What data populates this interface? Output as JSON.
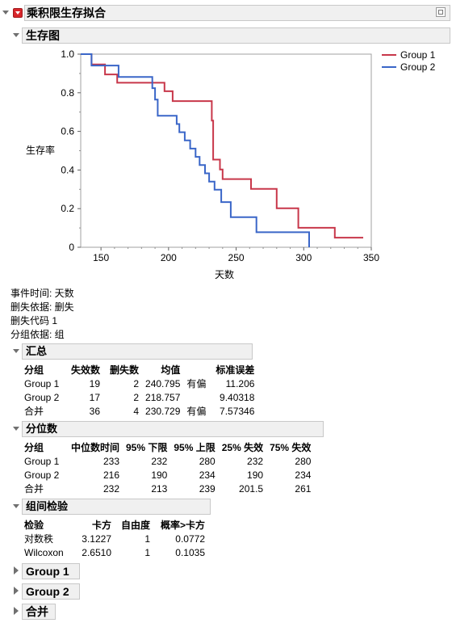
{
  "report": {
    "title": "乘积限生存拟合"
  },
  "plot": {
    "title": "生存图",
    "xlabel": "天数",
    "ylabel": "生存率"
  },
  "chart_data": {
    "type": "line",
    "title": "生存图",
    "xlabel": "天数",
    "ylabel": "生存率",
    "xlim": [
      135,
      350
    ],
    "ylim": [
      0,
      1.0
    ],
    "xticks": [
      150,
      200,
      250,
      300,
      350
    ],
    "yticks": [
      0,
      0.2,
      0.4,
      0.6,
      0.8,
      1.0
    ],
    "ytick_labels": [
      "0",
      "0.2",
      "0.4",
      "0.6",
      "0.8",
      "1.0"
    ],
    "legend_position": "right",
    "series": [
      {
        "name": "Group 1",
        "color": "#c8374a",
        "steps": [
          [
            135,
            1.0
          ],
          [
            143,
            1.0
          ],
          [
            143,
            0.947
          ],
          [
            153,
            0.947
          ],
          [
            153,
            0.895
          ],
          [
            162,
            0.895
          ],
          [
            162,
            0.852
          ],
          [
            197,
            0.852
          ],
          [
            197,
            0.808
          ],
          [
            203,
            0.808
          ],
          [
            203,
            0.757
          ],
          [
            232,
            0.757
          ],
          [
            232,
            0.656
          ],
          [
            233,
            0.656
          ],
          [
            233,
            0.454
          ],
          [
            238,
            0.454
          ],
          [
            238,
            0.403
          ],
          [
            240,
            0.403
          ],
          [
            240,
            0.353
          ],
          [
            261,
            0.353
          ],
          [
            261,
            0.302
          ],
          [
            280,
            0.302
          ],
          [
            280,
            0.202
          ],
          [
            296,
            0.202
          ],
          [
            296,
            0.101
          ],
          [
            323,
            0.101
          ],
          [
            323,
            0.05
          ],
          [
            344,
            0.05
          ]
        ]
      },
      {
        "name": "Group 2",
        "color": "#3a66c8",
        "steps": [
          [
            135,
            1.0
          ],
          [
            143,
            1.0
          ],
          [
            143,
            0.941
          ],
          [
            163,
            0.941
          ],
          [
            163,
            0.882
          ],
          [
            188,
            0.882
          ],
          [
            188,
            0.824
          ],
          [
            190,
            0.824
          ],
          [
            190,
            0.765
          ],
          [
            192,
            0.765
          ],
          [
            192,
            0.681
          ],
          [
            206,
            0.681
          ],
          [
            206,
            0.638
          ],
          [
            208,
            0.638
          ],
          [
            208,
            0.596
          ],
          [
            212,
            0.596
          ],
          [
            212,
            0.553
          ],
          [
            216,
            0.553
          ],
          [
            216,
            0.511
          ],
          [
            220,
            0.511
          ],
          [
            220,
            0.468
          ],
          [
            223,
            0.468
          ],
          [
            223,
            0.426
          ],
          [
            227,
            0.426
          ],
          [
            227,
            0.383
          ],
          [
            230,
            0.383
          ],
          [
            230,
            0.34
          ],
          [
            234,
            0.34
          ],
          [
            234,
            0.298
          ],
          [
            239,
            0.298
          ],
          [
            239,
            0.234
          ],
          [
            246,
            0.234
          ],
          [
            246,
            0.156
          ],
          [
            265,
            0.156
          ],
          [
            265,
            0.078
          ],
          [
            304,
            0.078
          ],
          [
            304,
            0.0
          ]
        ]
      }
    ]
  },
  "info": [
    "事件时间: 天数",
    "删失依据: 删失",
    "删失代码 1",
    "分组依据: 组"
  ],
  "summary": {
    "title": "汇总",
    "headers": [
      "分组",
      "失效数",
      "删失数",
      "均值",
      "",
      "标准误差"
    ],
    "rows": [
      [
        "Group 1",
        "19",
        "2",
        "240.795",
        "有偏",
        "11.206"
      ],
      [
        "Group 2",
        "17",
        "2",
        "218.757",
        "",
        "9.40318"
      ],
      [
        "合并",
        "36",
        "4",
        "230.729",
        "有偏",
        "7.57346"
      ]
    ]
  },
  "quantiles": {
    "title": "分位数",
    "headers": [
      "分组",
      "中位数时间",
      "95% 下限",
      "95% 上限",
      "25% 失效",
      "75% 失效"
    ],
    "rows": [
      [
        "Group 1",
        "233",
        "232",
        "280",
        "232",
        "280"
      ],
      [
        "Group 2",
        "216",
        "190",
        "234",
        "190",
        "234"
      ],
      [
        "合并",
        "232",
        "213",
        "239",
        "201.5",
        "261"
      ]
    ]
  },
  "tests": {
    "title": "组间检验",
    "headers": [
      "检验",
      "卡方",
      "自由度",
      "概率>卡方"
    ],
    "rows": [
      [
        "对数秩",
        "3.1227",
        "1",
        "0.0772"
      ],
      [
        "Wilcoxon",
        "2.6510",
        "1",
        "0.1035"
      ]
    ]
  },
  "collapsed": [
    {
      "label": "Group 1"
    },
    {
      "label": "Group 2"
    },
    {
      "label": "合并"
    }
  ]
}
